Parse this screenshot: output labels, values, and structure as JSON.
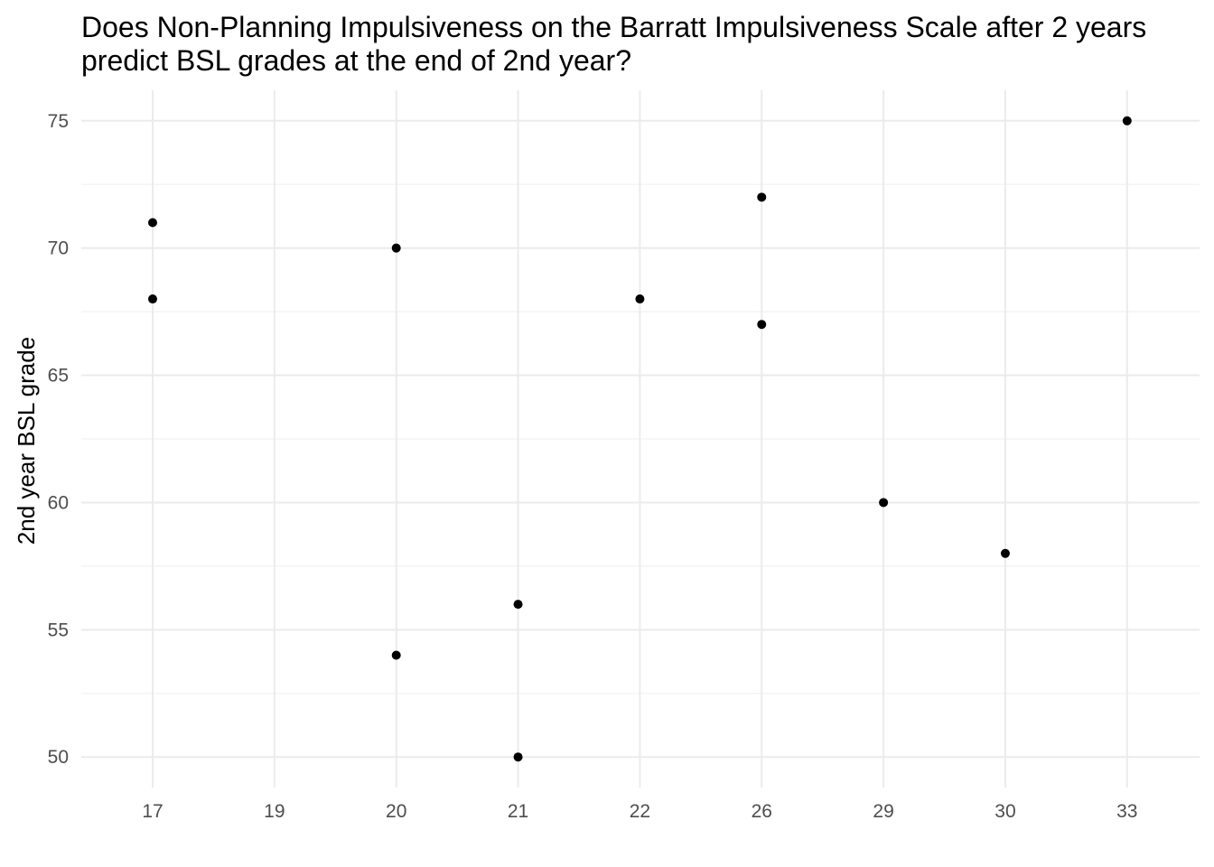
{
  "chart_data": {
    "type": "scatter",
    "title": "Does Non-Planning Impulsiveness on the Barratt Impulsiveness Scale after 2 years predict BSL grades at the end of 2nd year?",
    "title_lines": [
      "Does Non-Planning Impulsiveness on the Barratt Impulsiveness Scale after 2 years",
      "predict BSL grades at the end of 2nd year?"
    ],
    "xlabel": "",
    "ylabel": "2nd year BSL grade",
    "x_scale": "categorical",
    "x_categories": [
      "17",
      "19",
      "20",
      "21",
      "22",
      "26",
      "29",
      "30",
      "33"
    ],
    "ylim": [
      48.8,
      76.2
    ],
    "y_ticks": [
      50,
      55,
      60,
      65,
      70,
      75
    ],
    "grid": true,
    "point_color": "#000000",
    "points": [
      {
        "x": "17",
        "y": 71
      },
      {
        "x": "17",
        "y": 68
      },
      {
        "x": "20",
        "y": 70
      },
      {
        "x": "20",
        "y": 54
      },
      {
        "x": "21",
        "y": 56
      },
      {
        "x": "21",
        "y": 50
      },
      {
        "x": "22",
        "y": 68
      },
      {
        "x": "26",
        "y": 72
      },
      {
        "x": "26",
        "y": 67
      },
      {
        "x": "29",
        "y": 60
      },
      {
        "x": "30",
        "y": 58
      },
      {
        "x": "33",
        "y": 75
      }
    ]
  }
}
